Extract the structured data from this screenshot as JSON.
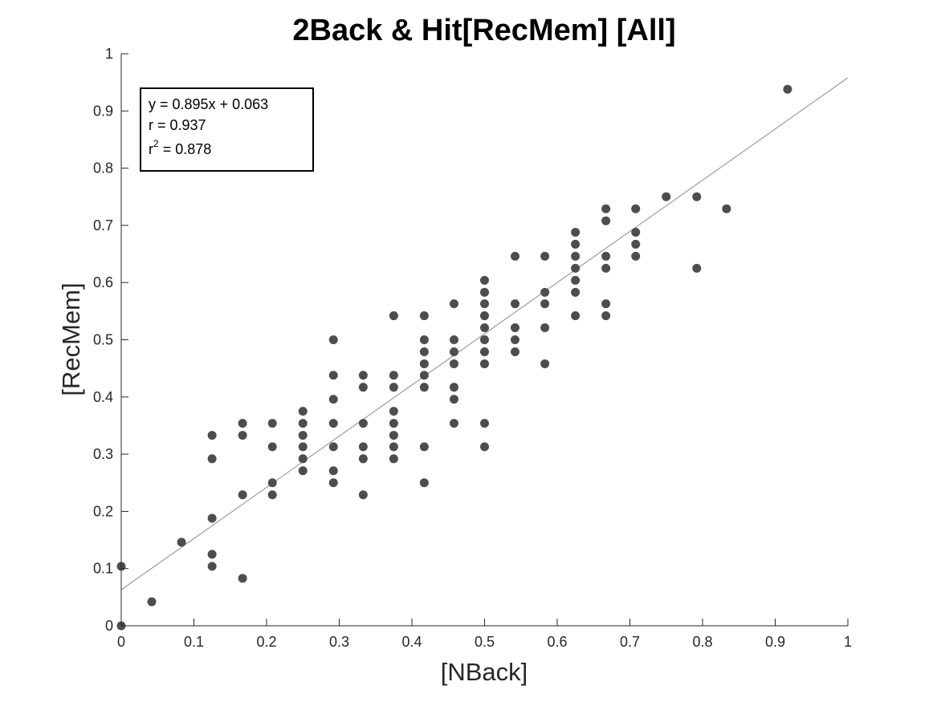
{
  "chart_data": {
    "type": "scatter",
    "title": "2Back & Hit[RecMem] [All]",
    "xlabel": "[NBack]",
    "ylabel": "[RecMem]",
    "xlim": [
      0,
      1
    ],
    "ylim": [
      0,
      1
    ],
    "x_ticks": [
      "0",
      "0.1",
      "0.2",
      "0.3",
      "0.4",
      "0.5",
      "0.6",
      "0.7",
      "0.8",
      "0.9",
      "1"
    ],
    "y_ticks": [
      "0",
      "0.1",
      "0.2",
      "0.3",
      "0.4",
      "0.5",
      "0.6",
      "0.7",
      "0.8",
      "0.9",
      "1"
    ],
    "grid": false,
    "legend": "none",
    "marker_color": "#4d4d4d",
    "fit_line_color": "#8c8c8c",
    "fit_line": {
      "slope": 0.895,
      "intercept": 0.063
    },
    "annotation": {
      "line1": "y = 0.895x + 0.063",
      "line2": "r = 0.937",
      "line3_base": "r",
      "line3_sup": "2",
      "line3_rest": " = 0.878",
      "placement": "top-left"
    },
    "points": [
      [
        0,
        0
      ],
      [
        0,
        0.104
      ],
      [
        0.042,
        0.042
      ],
      [
        0.083,
        0.146
      ],
      [
        0.125,
        0.333
      ],
      [
        0.125,
        0.292
      ],
      [
        0.125,
        0.188
      ],
      [
        0.125,
        0.125
      ],
      [
        0.125,
        0.104
      ],
      [
        0.167,
        0.354
      ],
      [
        0.167,
        0.333
      ],
      [
        0.167,
        0.229
      ],
      [
        0.167,
        0.083
      ],
      [
        0.208,
        0.354
      ],
      [
        0.208,
        0.313
      ],
      [
        0.208,
        0.25
      ],
      [
        0.208,
        0.229
      ],
      [
        0.25,
        0.375
      ],
      [
        0.25,
        0.354
      ],
      [
        0.25,
        0.333
      ],
      [
        0.25,
        0.313
      ],
      [
        0.25,
        0.292
      ],
      [
        0.25,
        0.271
      ],
      [
        0.292,
        0.5
      ],
      [
        0.292,
        0.438
      ],
      [
        0.292,
        0.396
      ],
      [
        0.292,
        0.354
      ],
      [
        0.292,
        0.313
      ],
      [
        0.292,
        0.271
      ],
      [
        0.292,
        0.25
      ],
      [
        0.333,
        0.438
      ],
      [
        0.333,
        0.417
      ],
      [
        0.333,
        0.354
      ],
      [
        0.333,
        0.313
      ],
      [
        0.333,
        0.292
      ],
      [
        0.333,
        0.229
      ],
      [
        0.375,
        0.542
      ],
      [
        0.375,
        0.438
      ],
      [
        0.375,
        0.417
      ],
      [
        0.375,
        0.375
      ],
      [
        0.375,
        0.354
      ],
      [
        0.375,
        0.333
      ],
      [
        0.375,
        0.313
      ],
      [
        0.375,
        0.292
      ],
      [
        0.417,
        0.542
      ],
      [
        0.417,
        0.5
      ],
      [
        0.417,
        0.479
      ],
      [
        0.417,
        0.458
      ],
      [
        0.417,
        0.438
      ],
      [
        0.417,
        0.417
      ],
      [
        0.417,
        0.313
      ],
      [
        0.417,
        0.25
      ],
      [
        0.458,
        0.563
      ],
      [
        0.458,
        0.5
      ],
      [
        0.458,
        0.479
      ],
      [
        0.458,
        0.458
      ],
      [
        0.458,
        0.417
      ],
      [
        0.458,
        0.396
      ],
      [
        0.458,
        0.354
      ],
      [
        0.5,
        0.604
      ],
      [
        0.5,
        0.583
      ],
      [
        0.5,
        0.563
      ],
      [
        0.5,
        0.542
      ],
      [
        0.5,
        0.521
      ],
      [
        0.5,
        0.5
      ],
      [
        0.5,
        0.479
      ],
      [
        0.5,
        0.458
      ],
      [
        0.5,
        0.354
      ],
      [
        0.5,
        0.313
      ],
      [
        0.542,
        0.646
      ],
      [
        0.542,
        0.563
      ],
      [
        0.542,
        0.521
      ],
      [
        0.542,
        0.5
      ],
      [
        0.542,
        0.479
      ],
      [
        0.583,
        0.646
      ],
      [
        0.583,
        0.583
      ],
      [
        0.583,
        0.563
      ],
      [
        0.583,
        0.521
      ],
      [
        0.583,
        0.458
      ],
      [
        0.625,
        0.688
      ],
      [
        0.625,
        0.667
      ],
      [
        0.625,
        0.646
      ],
      [
        0.625,
        0.625
      ],
      [
        0.625,
        0.604
      ],
      [
        0.625,
        0.583
      ],
      [
        0.625,
        0.542
      ],
      [
        0.667,
        0.729
      ],
      [
        0.667,
        0.708
      ],
      [
        0.667,
        0.646
      ],
      [
        0.667,
        0.625
      ],
      [
        0.667,
        0.563
      ],
      [
        0.667,
        0.542
      ],
      [
        0.708,
        0.729
      ],
      [
        0.708,
        0.688
      ],
      [
        0.708,
        0.667
      ],
      [
        0.708,
        0.646
      ],
      [
        0.75,
        0.75
      ],
      [
        0.792,
        0.75
      ],
      [
        0.792,
        0.625
      ],
      [
        0.833,
        0.729
      ],
      [
        0.917,
        0.938
      ]
    ]
  }
}
